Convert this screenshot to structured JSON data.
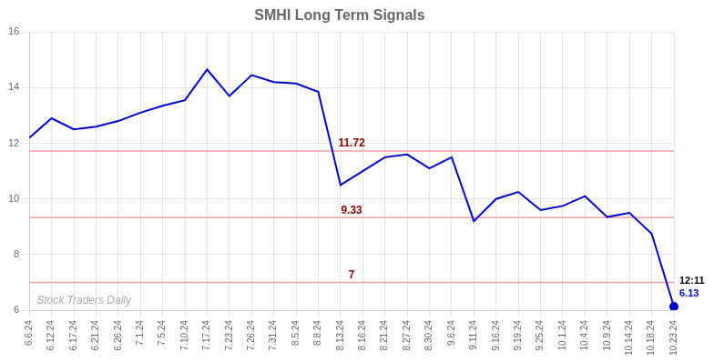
{
  "chart_data": {
    "type": "line",
    "title": "SMHI Long Term Signals",
    "categories": [
      "6.6.24",
      "6.12.24",
      "6.17.24",
      "6.21.24",
      "6.26.24",
      "7.1.24",
      "7.5.24",
      "7.10.24",
      "7.17.24",
      "7.23.24",
      "7.26.24",
      "7.31.24",
      "8.5.24",
      "8.8.24",
      "8.13.24",
      "8.16.24",
      "8.21.24",
      "8.27.24",
      "8.30.24",
      "9.6.24",
      "9.11.24",
      "9.16.24",
      "9.19.24",
      "9.25.24",
      "10.1.24",
      "10.4.24",
      "10.9.24",
      "10.14.24",
      "10.18.24",
      "10.23.24"
    ],
    "values": [
      12.2,
      12.9,
      12.5,
      12.6,
      12.8,
      13.1,
      13.35,
      13.55,
      14.65,
      13.7,
      14.45,
      14.2,
      14.15,
      13.85,
      10.5,
      11.0,
      11.5,
      11.6,
      11.1,
      11.5,
      9.2,
      10.0,
      10.25,
      9.6,
      9.75,
      10.1,
      9.35,
      9.5,
      8.75,
      6.13
    ],
    "color": "#0000cc",
    "ylim": [
      6,
      16
    ],
    "yticks": [
      6,
      8,
      10,
      12,
      14,
      16
    ],
    "grid": true,
    "annotations": [
      {
        "type": "hline",
        "y": 11.72,
        "text": "11.72",
        "line_color": "#f5a0a0",
        "text_color": "#8b0000"
      },
      {
        "type": "hline",
        "y": 9.33,
        "text": "9.33",
        "line_color": "#f5a0a0",
        "text_color": "#8b0000"
      },
      {
        "type": "hline",
        "y": 7.0,
        "text": "7",
        "line_color": "#f5a0a0",
        "text_color": "#8b0000"
      },
      {
        "type": "point_label",
        "x": "10.23.24",
        "y": 6.13,
        "text": "6.13",
        "text_color": "#0000cc"
      },
      {
        "type": "point_label",
        "x": "10.23.24",
        "y": 6.13,
        "text": "12:11",
        "text_color": "#000000"
      },
      {
        "type": "watermark",
        "text": "Stock Traders Daily",
        "text_color": "#aaaaaa"
      }
    ]
  }
}
